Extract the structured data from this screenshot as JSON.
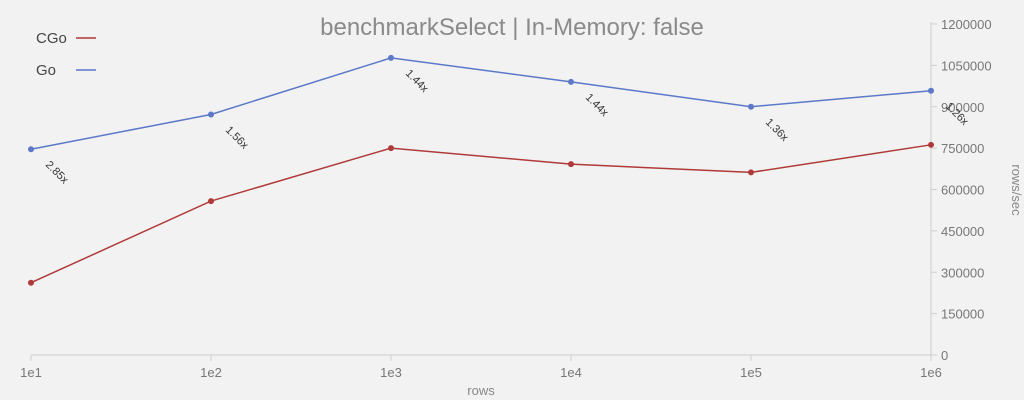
{
  "chart_data": {
    "type": "line",
    "title": "benchmarkSelect | In-Memory: false",
    "xlabel": "rows",
    "ylabel": "rows/sec",
    "categories": [
      "1e1",
      "1e2",
      "1e3",
      "1e4",
      "1e5",
      "1e6"
    ],
    "y_axis_position": "right",
    "ylim": [
      0,
      1200000
    ],
    "yticks": [
      0,
      150000,
      300000,
      450000,
      600000,
      750000,
      900000,
      1050000,
      1200000
    ],
    "ytick_labels": [
      "0",
      "150000",
      "300000",
      "450000",
      "600000",
      "750000",
      "900000",
      "1050000",
      "1200000"
    ],
    "grid": false,
    "legend_position": "top-left",
    "series": [
      {
        "name": "CGo",
        "color": "#b03a3a",
        "values": [
          262000,
          558000,
          750000,
          692000,
          662000,
          762000
        ]
      },
      {
        "name": "Go",
        "color": "#5b78c9",
        "values": [
          746000,
          872000,
          1077000,
          990000,
          900000,
          958000
        ]
      }
    ],
    "annotations": [
      "2.85x",
      "1.56x",
      "1.44x",
      "1.44x",
      "1.36x",
      "1.26x"
    ]
  }
}
